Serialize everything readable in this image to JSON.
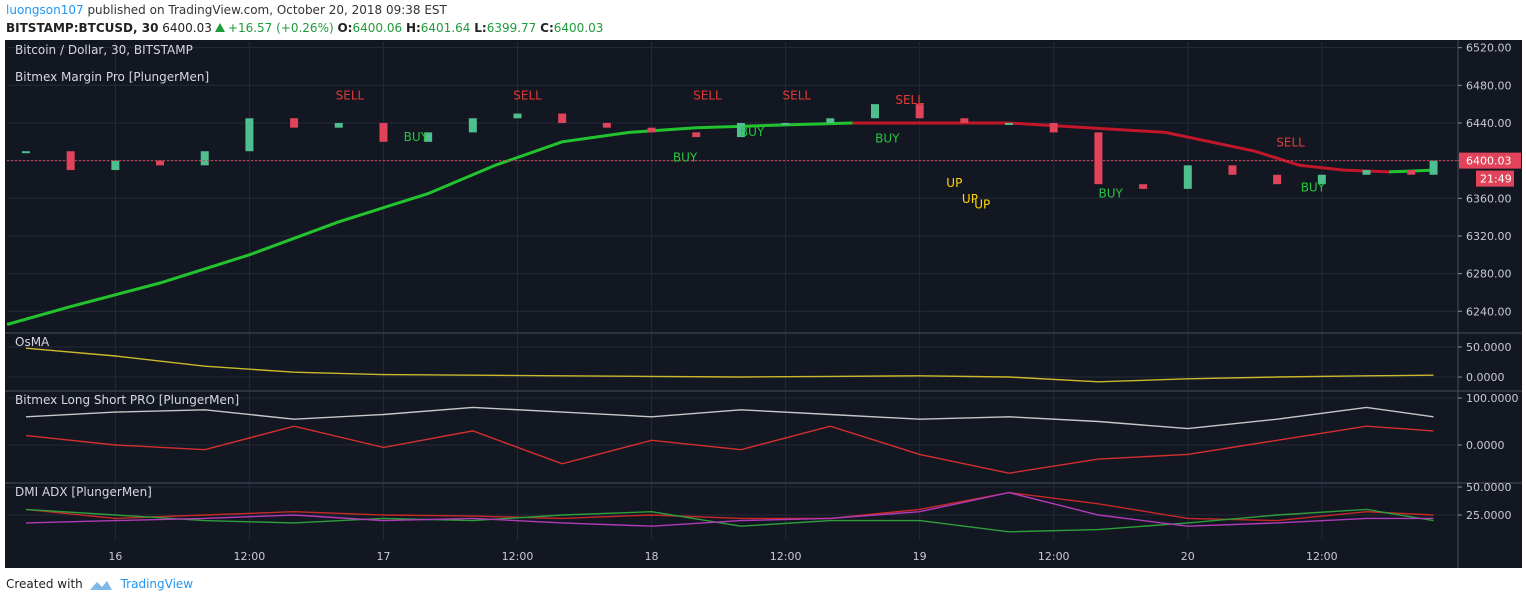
{
  "header": {
    "author": "luongson107",
    "published": "published on TradingView.com, October 20, 2018 09:38 EST",
    "symbol": "BITSTAMP:BTCUSD, 30",
    "price": "6400.03",
    "change": "+16.57 (+0.26%)",
    "open_label": "O:",
    "open": "6400.06",
    "high_label": "H:",
    "high": "6401.64",
    "low_label": "L:",
    "low": "6399.77",
    "close_label": "C:",
    "close": "6400.03"
  },
  "chart_data": [
    {
      "type": "candlestick",
      "title": "Bitcoin / Dollar, 30, BITSTAMP",
      "subtitle": "Bitmex Margin Pro [PlungerMen]",
      "x": [
        16,
        20,
        24,
        28,
        32,
        36,
        40,
        44,
        48,
        52,
        56,
        60,
        64,
        68,
        72,
        76,
        80,
        84,
        88,
        92,
        96,
        100,
        104,
        108,
        112,
        116,
        120,
        124,
        128,
        132,
        136,
        140,
        142
      ],
      "closes": [
        6410,
        6390,
        6400,
        6395,
        6410,
        6445,
        6435,
        6440,
        6420,
        6430,
        6445,
        6450,
        6440,
        6435,
        6430,
        6425,
        6440,
        6440,
        6445,
        6460,
        6445,
        6440,
        6440,
        6430,
        6375,
        6370,
        6395,
        6385,
        6375,
        6385,
        6390,
        6385,
        6400
      ],
      "up_color": "#4fbf8f",
      "down_color": "#e0435a",
      "series": [
        {
          "color": "#22c32e",
          "x": [
            14.3,
            20,
            28,
            36,
            44,
            52,
            58,
            64,
            70,
            76,
            84,
            90,
            104,
            118,
            126,
            130,
            134,
            138,
            142
          ],
          "values": [
            6226,
            6245,
            6270,
            6300,
            6335,
            6365,
            6395,
            6420,
            6430,
            6435,
            6438,
            6440,
            null,
            null,
            null,
            null,
            null,
            6388,
            6390
          ]
        },
        {
          "color": "#c0172a",
          "x": [
            14.3,
            20,
            28,
            36,
            44,
            52,
            58,
            64,
            70,
            76,
            84,
            90,
            104,
            118,
            126,
            130,
            134,
            138,
            142
          ],
          "values": [
            null,
            null,
            null,
            null,
            null,
            null,
            null,
            null,
            null,
            null,
            null,
            6440,
            6440,
            6430,
            6410,
            6395,
            6390,
            6388,
            null
          ]
        }
      ],
      "xlim": [
        14.3,
        144.1
      ],
      "ylim": [
        6218,
        6526
      ],
      "xticks": [
        {
          "value": 24,
          "label": "16"
        },
        {
          "value": 36,
          "label": "12:00"
        },
        {
          "value": 48,
          "label": "17"
        },
        {
          "value": 60,
          "label": "12:00"
        },
        {
          "value": 72,
          "label": "18"
        },
        {
          "value": 84,
          "label": "12:00"
        },
        {
          "value": 96,
          "label": "19"
        },
        {
          "value": 108,
          "label": "12:00"
        },
        {
          "value": 120,
          "label": "20"
        },
        {
          "value": 132,
          "label": "12:00"
        }
      ],
      "yticks": [
        {
          "value": 6240,
          "label": "6240.00"
        },
        {
          "value": 6280,
          "label": "6280.00"
        },
        {
          "value": 6320,
          "label": "6320.00"
        },
        {
          "value": 6360,
          "label": "6360.00"
        },
        {
          "value": 6400,
          "label": "6400.00"
        },
        {
          "value": 6440,
          "label": "6440.00"
        },
        {
          "value": 6480,
          "label": "6480.00"
        },
        {
          "value": 6520,
          "label": "6520.00"
        }
      ],
      "last_price": 6400.03,
      "last_price_color": "#e0435a",
      "countdown": "21:49",
      "annotations": [
        {
          "text": "SELL",
          "x": 45.0,
          "y": 6465,
          "color": "#e53935"
        },
        {
          "text": "SELL",
          "x": 60.9,
          "y": 6465,
          "color": "#e53935"
        },
        {
          "text": "SELL",
          "x": 77.0,
          "y": 6465,
          "color": "#e53935"
        },
        {
          "text": "SELL",
          "x": 85.0,
          "y": 6465,
          "color": "#e53935"
        },
        {
          "text": "SELL",
          "x": 95.1,
          "y": 6460,
          "color": "#e53935"
        },
        {
          "text": "SELL",
          "x": 129.2,
          "y": 6415,
          "color": "#e53935"
        },
        {
          "text": "BUY",
          "x": 50.9,
          "y": 6421,
          "color": "#26c640"
        },
        {
          "text": "BUY",
          "x": 75.0,
          "y": 6399,
          "color": "#26c640"
        },
        {
          "text": "BUY",
          "x": 81.0,
          "y": 6426,
          "color": "#26c640"
        },
        {
          "text": "BUY",
          "x": 93.1,
          "y": 6419,
          "color": "#26c640"
        },
        {
          "text": "BUY",
          "x": 113.1,
          "y": 6361,
          "color": "#26c640"
        },
        {
          "text": "BUY",
          "x": 131.2,
          "y": 6367,
          "color": "#26c640"
        },
        {
          "text": "UP",
          "x": 99.1,
          "y": 6372,
          "color": "#ffd600"
        },
        {
          "text": "UP",
          "x": 100.5,
          "y": 6355,
          "color": "#ffd600"
        },
        {
          "text": "UP",
          "x": 101.6,
          "y": 6349,
          "color": "#ffd600"
        }
      ],
      "grid": true
    },
    {
      "type": "line",
      "title": "OsMA",
      "x": [
        16,
        24,
        32,
        40,
        48,
        56,
        64,
        72,
        80,
        88,
        96,
        104,
        112,
        120,
        128,
        136,
        142
      ],
      "series": [
        {
          "color": "#c9b92b",
          "values": [
            48,
            35,
            18,
            8,
            4,
            3,
            2,
            1,
            0,
            1,
            2,
            0,
            -8,
            -3,
            0,
            2,
            3
          ]
        }
      ],
      "xlim": [
        14.3,
        144.1
      ],
      "ylim": [
        -21.7,
        71.7
      ],
      "yticks": [
        {
          "value": 0,
          "label": "0.0000"
        },
        {
          "value": 50,
          "label": "50.0000"
        }
      ],
      "grid": true
    },
    {
      "type": "line",
      "title": "Bitmex Long Short PRO [PlungerMen]",
      "x": [
        16,
        24,
        32,
        40,
        48,
        56,
        64,
        72,
        80,
        88,
        96,
        104,
        112,
        120,
        128,
        136,
        142
      ],
      "series": [
        {
          "color": "#c8c8c8",
          "values": [
            60,
            70,
            75,
            55,
            65,
            80,
            70,
            60,
            75,
            65,
            55,
            60,
            50,
            35,
            55,
            80,
            60
          ]
        },
        {
          "color": "#d32f2f",
          "values": [
            20,
            0,
            -10,
            40,
            -5,
            30,
            -40,
            10,
            -10,
            40,
            -20,
            -60,
            -30,
            -20,
            10,
            40,
            30
          ]
        }
      ],
      "xlim": [
        14.3,
        144.1
      ],
      "ylim": [
        -78.7,
        112.8
      ],
      "yticks": [
        {
          "value": 0,
          "label": "0.0000"
        },
        {
          "value": 100,
          "label": "100.0000"
        }
      ],
      "grid": true
    },
    {
      "type": "line",
      "title": "DMI ADX [PlungerMen]",
      "x": [
        16,
        24,
        32,
        40,
        48,
        56,
        64,
        72,
        80,
        88,
        96,
        104,
        112,
        120,
        128,
        136,
        142
      ],
      "series": [
        {
          "color": "#c62828",
          "values": [
            30,
            22,
            25,
            28,
            25,
            24,
            22,
            25,
            22,
            22,
            30,
            45,
            35,
            22,
            20,
            28,
            25
          ]
        },
        {
          "color": "#2e9e3a",
          "values": [
            30,
            25,
            20,
            18,
            22,
            20,
            25,
            28,
            15,
            20,
            20,
            10,
            12,
            18,
            25,
            30,
            20
          ]
        },
        {
          "color": "#b03ab8",
          "values": [
            18,
            20,
            22,
            25,
            20,
            22,
            18,
            15,
            20,
            22,
            28,
            45,
            25,
            15,
            18,
            22,
            22
          ]
        }
      ],
      "xlim": [
        14.3,
        144.1
      ],
      "ylim": [
        2.7,
        52.7
      ],
      "yticks": [
        {
          "value": 25,
          "label": "25.0000"
        },
        {
          "value": 50,
          "label": "50.0000"
        }
      ],
      "grid": true
    }
  ],
  "footer": {
    "created": "Created with",
    "brand": "TradingView"
  }
}
